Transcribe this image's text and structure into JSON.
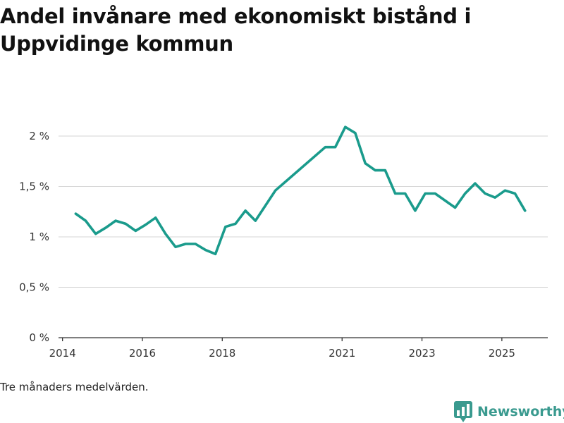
{
  "title": "Andel invånare med ekonomiskt bistånd i Uppvidinge kommun",
  "footnote": "Tre månaders medelvärden.",
  "brand": {
    "name": "Newsworthy",
    "icon": "chart-logo-icon",
    "color": "#3a9a8f"
  },
  "chart_data": {
    "type": "line",
    "title": "Andel invånare med ekonomiskt bistånd i Uppvidinge kommun",
    "xlabel": "",
    "ylabel": "",
    "xlim": [
      2013.9,
      2026.15
    ],
    "ylim": [
      0,
      2
    ],
    "grid": true,
    "x_ticks": [
      {
        "value": 2014,
        "label": "2014"
      },
      {
        "value": 2016,
        "label": "2016"
      },
      {
        "value": 2018,
        "label": "2018"
      },
      {
        "value": 2021,
        "label": "2021"
      },
      {
        "value": 2023,
        "label": "2023"
      },
      {
        "value": 2025,
        "label": "2025"
      }
    ],
    "y_ticks": [
      {
        "value": 0,
        "label": "0 %"
      },
      {
        "value": 0.5,
        "label": "0,5 %"
      },
      {
        "value": 1,
        "label": "1 %"
      },
      {
        "value": 1.5,
        "label": "1,5 %"
      },
      {
        "value": 2,
        "label": "2 %"
      }
    ],
    "line_color": "#1a9b8c",
    "series": [
      {
        "name": "Andel invånare med ekonomiskt bistånd",
        "x": [
          2014.33,
          2014.58,
          2014.83,
          2015.08,
          2015.33,
          2015.58,
          2015.83,
          2016.08,
          2016.33,
          2016.58,
          2016.83,
          2017.08,
          2017.33,
          2017.58,
          2017.83,
          2018.08,
          2018.33,
          2018.58,
          2018.83,
          2019.33,
          2020.58,
          2020.83,
          2021.08,
          2021.33,
          2021.58,
          2021.83,
          2022.08,
          2022.33,
          2022.58,
          2022.83,
          2023.08,
          2023.33,
          2023.58,
          2023.83,
          2024.08,
          2024.33,
          2024.58,
          2024.83,
          2025.08,
          2025.33,
          2025.58
        ],
        "values": [
          1.23,
          1.16,
          1.03,
          1.09,
          1.16,
          1.13,
          1.06,
          1.12,
          1.19,
          1.03,
          0.9,
          0.93,
          0.93,
          0.87,
          0.83,
          1.1,
          1.13,
          1.26,
          1.16,
          1.46,
          1.89,
          1.89,
          2.09,
          2.03,
          1.73,
          1.66,
          1.66,
          1.43,
          1.43,
          1.26,
          1.43,
          1.43,
          1.36,
          1.29,
          1.43,
          1.53,
          1.43,
          1.39,
          1.46,
          1.43,
          1.26
        ]
      }
    ]
  }
}
